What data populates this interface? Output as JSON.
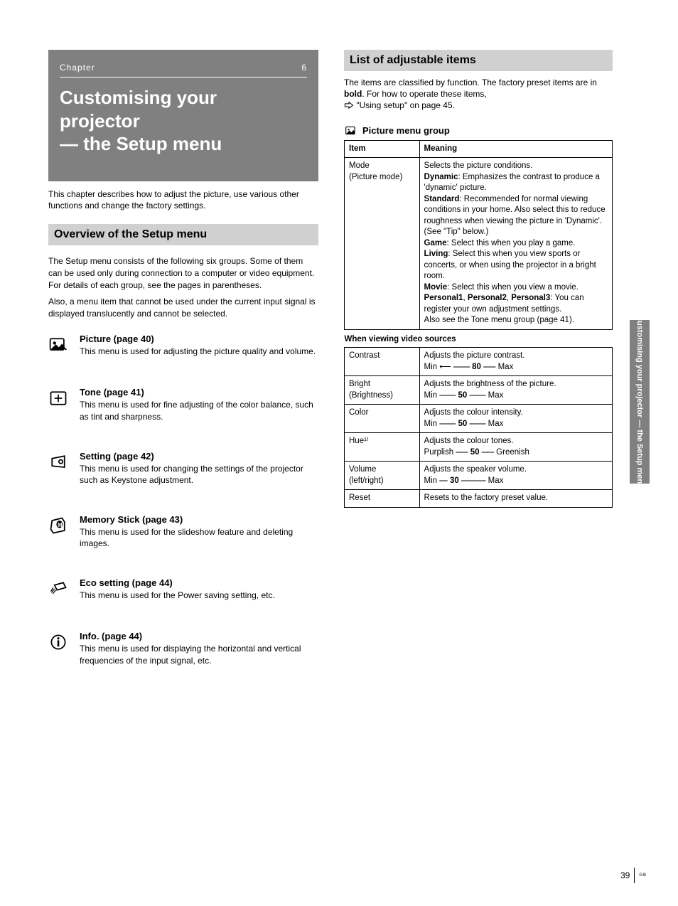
{
  "title_block": {
    "chapter_left": "Chapter",
    "chapter_right": "6",
    "line1": "Customising your",
    "line2": "projector",
    "line3": "— the Setup menu"
  },
  "left": {
    "lead_para": "This chapter describes how to adjust the picture, use various other functions and change the factory settings.",
    "section_title": "Overview of the Setup menu",
    "intro_part1": "The Setup menu consists of the following six groups. Some of them can be used only during connection to a computer or video equipment. For details of each group, see the pages in parentheses.",
    "intro_part2": "Also, a menu item that cannot be used under the current input signal is displayed translucently and cannot be selected.",
    "menu_items": [
      {
        "icon": "picture",
        "name": "Picture (page 40)",
        "desc": "This menu is used for adjusting the picture quality and volume."
      },
      {
        "icon": "tone",
        "name": "Tone (page 41)",
        "desc": "This menu is used for fine adjusting of the color balance, such as tint and sharpness."
      },
      {
        "icon": "setting",
        "name": "Setting (page 42)",
        "desc": "This menu is used for changing the settings of the projector such as Keystone adjustment."
      },
      {
        "icon": "memory",
        "name": "Memory Stick (page 43)",
        "desc": "This menu is used for the slideshow feature and deleting images."
      },
      {
        "icon": "eco",
        "name": "Eco setting (page 44)",
        "desc": "This menu is used for the Power saving setting, etc."
      },
      {
        "icon": "info",
        "name": "Info. (page 44)",
        "desc": "This menu is used for displaying the horizontal and vertical frequencies of the input signal, etc."
      }
    ]
  },
  "right": {
    "section_title": "List of adjustable items",
    "intro": "The items are classified by function. The factory preset items are in",
    "intro_bold": "bold",
    "intro_tail": ". For how to operate these items,",
    "intro_see": "  \"Using setup\" on page 45.",
    "subhead": "Picture menu group",
    "table": {
      "headers": [
        "Item",
        "Meaning"
      ],
      "rows": [
        {
          "item_lines": [
            "Mode",
            "(Picture mode)"
          ],
          "meaning_lines": [
            "Selects the picture conditions.",
            "<b>Dynamic</b>: Emphasizes the contrast to produce a 'dynamic' picture.",
            "<b>Standard</b>: Recommended for normal viewing conditions in your home. Also select this to reduce roughness when viewing the picture in 'Dynamic'. (See \"Tip\" below.)",
            "<b>Game</b>: Select this when you play a game.",
            "<b>Living</b>: Select this when you view sports or concerts, or when using the projector in a bright room.",
            "<b>Movie</b>: Select this when you view a movie.",
            "<b>Personal1</b>, <b>Personal2</b>, <b>Personal3</b>: You can register your own adjustment settings.",
            "Also see the Tone menu group (page 41)."
          ]
        },
        {
          "separator": true,
          "text": "When viewing video sources"
        },
        {
          "item_lines": [
            "Contrast"
          ],
          "meaning_lines": [
            "Adjusts the picture contrast.",
            "Min  ⟵ ⎯⎯⎯⎯ <b>80</b> ⎯⎯⎯ Max"
          ]
        },
        {
          "item_lines": [
            "Bright",
            "(Brightness)"
          ],
          "meaning_lines": [
            "Adjusts the brightness of the picture.",
            "Min  ⎯⎯⎯⎯ <b>50</b> ⎯⎯⎯⎯ Max"
          ]
        },
        {
          "item_lines": [
            "Color"
          ],
          "meaning_lines": [
            "Adjusts the colour intensity.",
            "Min  ⎯⎯⎯⎯ <b>50</b> ⎯⎯⎯⎯ Max"
          ]
        },
        {
          "item_lines": [
            "Hue¹⁾"
          ],
          "meaning_lines": [
            "Adjusts the colour tones.",
            "Purplish  ⎯⎯⎯ <b>50</b> ⎯⎯⎯ Greenish"
          ]
        },
        {
          "item_lines": [
            "Volume",
            "(left/right)"
          ],
          "meaning_lines": [
            "Adjusts the speaker volume.",
            "Min  ⎯⎯ <b>30</b> ⎯⎯⎯⎯⎯⎯ Max"
          ]
        },
        {
          "item_lines": [
            "Reset"
          ],
          "meaning_lines": [
            "Resets to the factory preset value."
          ]
        }
      ]
    }
  },
  "side_tab": "Customising your projector — the Setup menu",
  "footer": {
    "page": "39",
    "lang": "GB"
  }
}
